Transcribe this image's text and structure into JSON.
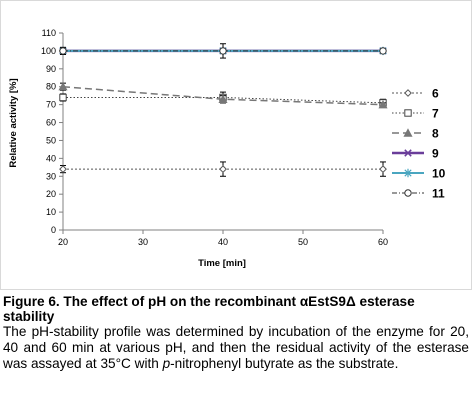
{
  "chart_data": {
    "type": "line",
    "xlabel": "Time [min]",
    "ylabel": "Relative activity [%]",
    "xlim": [
      20,
      60
    ],
    "ylim": [
      0,
      110
    ],
    "xticks": [
      20,
      30,
      40,
      50,
      60
    ],
    "yticks": [
      0,
      10,
      20,
      30,
      40,
      50,
      60,
      70,
      80,
      90,
      100,
      110
    ],
    "grid": false,
    "legend_position": "right",
    "series": [
      {
        "name": "6",
        "x": [
          20,
          40,
          60
        ],
        "y": [
          34,
          34,
          34
        ],
        "err": [
          2,
          4,
          4
        ],
        "color": "#555555",
        "marker": "diamond-open",
        "dash": "2,2",
        "width": 1
      },
      {
        "name": "7",
        "x": [
          20,
          40,
          60
        ],
        "y": [
          74,
          74,
          71
        ],
        "err": [
          2,
          3,
          2
        ],
        "color": "#444444",
        "marker": "square-open",
        "dash": "1.5,2",
        "width": 1
      },
      {
        "name": "8",
        "x": [
          20,
          40,
          60
        ],
        "y": [
          80,
          73,
          70
        ],
        "err": [
          2,
          2,
          1
        ],
        "color": "#777777",
        "marker": "triangle-filled",
        "dash": "7,4",
        "width": 1.5
      },
      {
        "name": "9",
        "x": [
          20,
          40,
          60
        ],
        "y": [
          100,
          100,
          100
        ],
        "err": [
          0,
          0,
          0
        ],
        "color": "#6a3d9a",
        "marker": "x",
        "dash": "",
        "width": 2.5
      },
      {
        "name": "10",
        "x": [
          20,
          40,
          60
        ],
        "y": [
          100,
          100,
          100
        ],
        "err": [
          0,
          0,
          0
        ],
        "color": "#4aa6c0",
        "marker": "star",
        "dash": "",
        "width": 2
      },
      {
        "name": "11",
        "x": [
          20,
          40,
          60
        ],
        "y": [
          100,
          100,
          100
        ],
        "err": [
          2,
          4,
          1
        ],
        "color": "#333333",
        "marker": "circle-open",
        "dash": "5,2,1,2",
        "width": 1
      }
    ]
  },
  "caption": {
    "title": "Figure 6. The effect of pH on the recombinant αEstS9Δ esterase stability",
    "body_before": "The pH-stability profile was determined by incubation of the enzyme for 20, 40 and 60 min at various pH, and then the residual activity of the esterase was assayed at 35°C with ",
    "body_italic": "p",
    "body_after": "-nitrophenyl butyrate as the substrate."
  }
}
